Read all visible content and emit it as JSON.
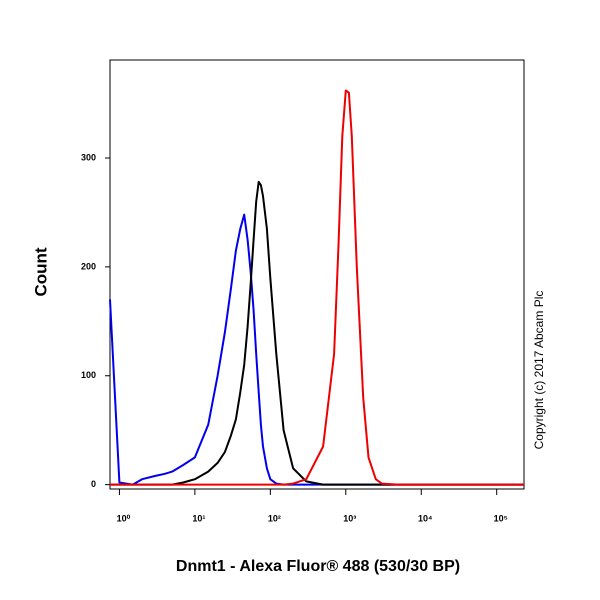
{
  "chart_data": {
    "type": "line",
    "x_label": "Dnmt1 - Alexa Fluor® 488 (530/30 BP)",
    "y_label": "Count",
    "copyright": "Copyright (c) 2017 Abcam Plc",
    "x_scale": "log",
    "xlim": [
      0.75,
      230000
    ],
    "ylim": [
      -4,
      390
    ],
    "xticks": [
      {
        "value": 1,
        "label": "10⁰"
      },
      {
        "value": 10,
        "label": "10¹"
      },
      {
        "value": 100,
        "label": "10²"
      },
      {
        "value": 1000,
        "label": "10³"
      },
      {
        "value": 10000,
        "label": "10⁴"
      },
      {
        "value": 100000,
        "label": "10⁵"
      }
    ],
    "yticks": [
      0,
      100,
      200,
      300
    ],
    "x": [
      0.75,
      1,
      1.5,
      2,
      3,
      4,
      5,
      7,
      10,
      15,
      20,
      25,
      30,
      35,
      40,
      45,
      50,
      55,
      60,
      65,
      70,
      75,
      80,
      90,
      100,
      120,
      150,
      200,
      300,
      500,
      700,
      800,
      900,
      1000,
      1100,
      1200,
      1400,
      1700,
      2000,
      2500,
      3000,
      5000,
      10000,
      50000,
      230000
    ],
    "series": [
      {
        "color": "#0000ee",
        "values": [
          170,
          2,
          0,
          5,
          8,
          10,
          12,
          18,
          25,
          55,
          100,
          140,
          180,
          215,
          235,
          248,
          225,
          195,
          160,
          120,
          85,
          55,
          35,
          15,
          5,
          1,
          0,
          0,
          0,
          0,
          0,
          0,
          0,
          0,
          0,
          0,
          0,
          0,
          0,
          0,
          0,
          0,
          0,
          0,
          0
        ]
      },
      {
        "color": "#000000",
        "values": [
          0,
          0,
          0,
          0,
          0,
          0,
          0,
          2,
          5,
          12,
          20,
          30,
          45,
          60,
          85,
          110,
          145,
          185,
          225,
          260,
          278,
          275,
          265,
          235,
          190,
          120,
          50,
          15,
          3,
          0,
          0,
          0,
          0,
          0,
          0,
          0,
          0,
          0,
          0,
          0,
          0,
          0,
          0,
          0,
          0
        ]
      },
      {
        "color": "#ee0000",
        "values": [
          0,
          0,
          0,
          0,
          0,
          0,
          0,
          0,
          0,
          0,
          0,
          0,
          0,
          0,
          0,
          0,
          0,
          0,
          0,
          0,
          0,
          0,
          0,
          0,
          0,
          0,
          0,
          1,
          5,
          35,
          120,
          220,
          320,
          362,
          360,
          320,
          200,
          80,
          25,
          5,
          1,
          0,
          0,
          0,
          0
        ]
      }
    ]
  }
}
